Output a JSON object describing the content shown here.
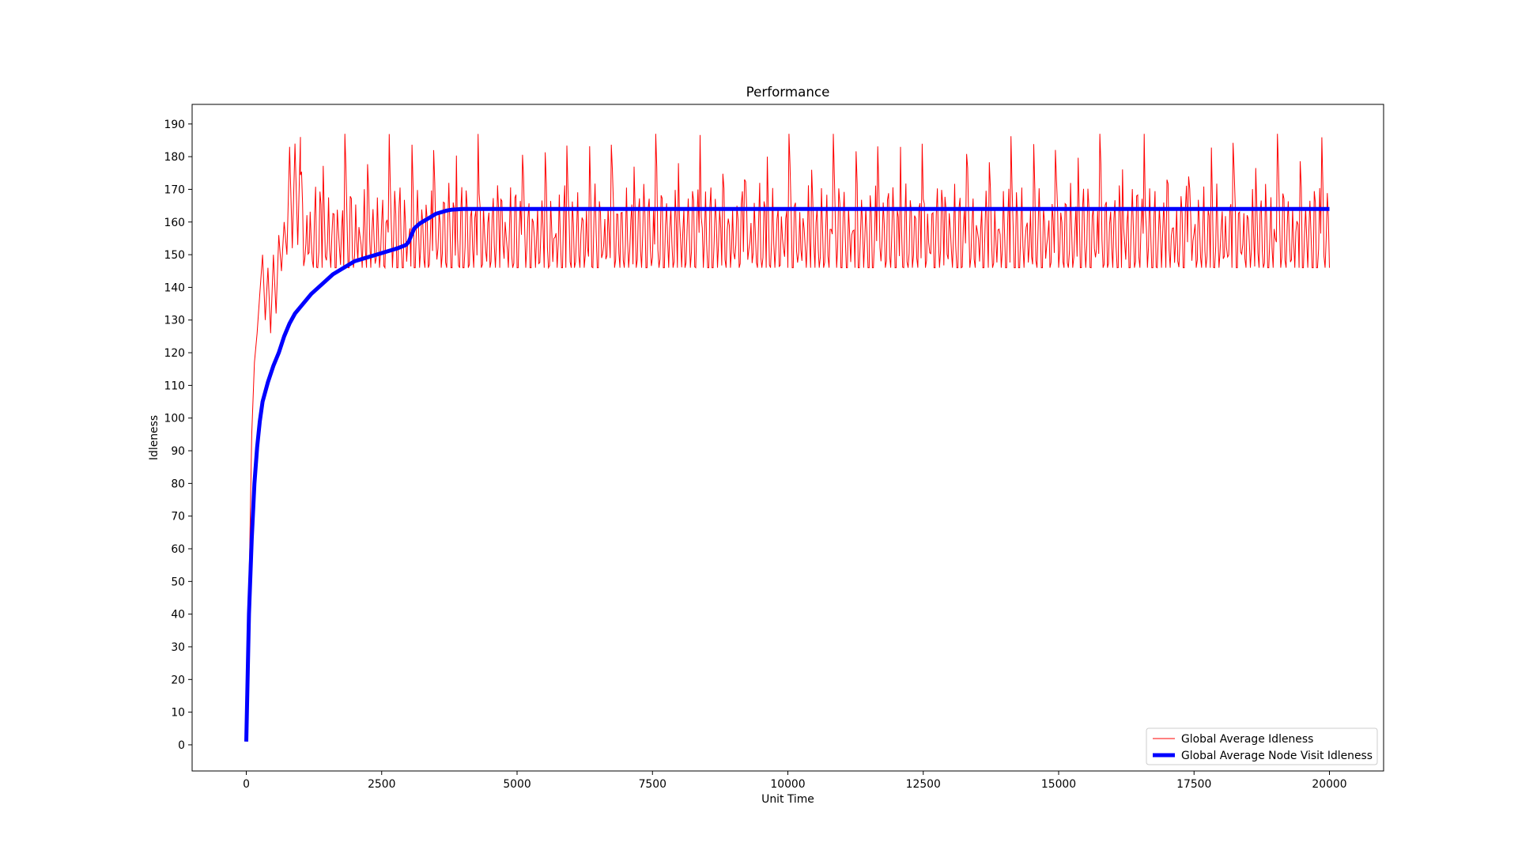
{
  "chart_data": {
    "type": "line",
    "title": "Performance",
    "xlabel": "Unit Time",
    "ylabel": "Idleness",
    "xlim": [
      -1000,
      21000
    ],
    "ylim": [
      -8,
      196
    ],
    "xticks": [
      0,
      2500,
      5000,
      7500,
      10000,
      12500,
      15000,
      17500,
      20000
    ],
    "xtick_labels": [
      "0",
      "2500",
      "5000",
      "7500",
      "10000",
      "12500",
      "15000",
      "17500",
      "20000"
    ],
    "yticks": [
      0,
      10,
      20,
      30,
      40,
      50,
      60,
      70,
      80,
      90,
      100,
      110,
      120,
      130,
      140,
      150,
      160,
      170,
      180,
      190
    ],
    "ytick_labels": [
      "0",
      "10",
      "20",
      "30",
      "40",
      "50",
      "60",
      "70",
      "80",
      "90",
      "100",
      "110",
      "120",
      "130",
      "140",
      "150",
      "160",
      "170",
      "180",
      "190"
    ],
    "grid": false,
    "legend_position": "bottom-right",
    "series": [
      {
        "name": "Global Average Idleness",
        "color": "#ff0000",
        "style": "thin",
        "x": [
          0,
          30,
          60,
          100,
          150,
          200,
          250,
          300,
          350,
          400,
          450,
          500,
          550,
          600,
          650,
          700,
          750,
          800,
          850,
          900,
          950,
          1000,
          1100,
          1200,
          1300,
          1400,
          1500,
          1600,
          1700,
          1800,
          1900,
          2000,
          2200,
          2400,
          2600,
          2800,
          3000,
          3200,
          3400,
          3600,
          3800,
          4000,
          20000
        ],
        "y": [
          1,
          40,
          57,
          95,
          117,
          126,
          138,
          150,
          130,
          146,
          126,
          150,
          132,
          156,
          145,
          160,
          150,
          183,
          152,
          184,
          153,
          186,
          150,
          185,
          150,
          186,
          148,
          186,
          150,
          185,
          148,
          186,
          147,
          186,
          147,
          186,
          146,
          186,
          146,
          186,
          146,
          186,
          186
        ]
      },
      {
        "name": "Global Average Node Visit Idleness",
        "color": "#0000ff",
        "style": "thick",
        "x": [
          0,
          50,
          100,
          150,
          200,
          250,
          300,
          350,
          400,
          500,
          600,
          700,
          800,
          900,
          1000,
          1200,
          1400,
          1600,
          1800,
          2000,
          2200,
          2400,
          2600,
          2800,
          2950,
          3000,
          3050,
          3100,
          3200,
          3300,
          3400,
          3500,
          3600,
          3700,
          3800,
          4000,
          5000,
          10000,
          15000,
          20000
        ],
        "y": [
          1,
          40,
          63,
          80,
          91,
          99,
          105,
          108,
          111,
          116,
          120,
          125,
          129,
          132,
          134,
          138,
          141,
          144,
          146,
          148,
          149,
          150,
          151,
          152,
          153,
          154,
          156,
          158,
          159.5,
          160.5,
          161.5,
          162.5,
          163,
          163.5,
          163.8,
          164,
          164,
          164,
          164,
          164
        ]
      }
    ]
  }
}
